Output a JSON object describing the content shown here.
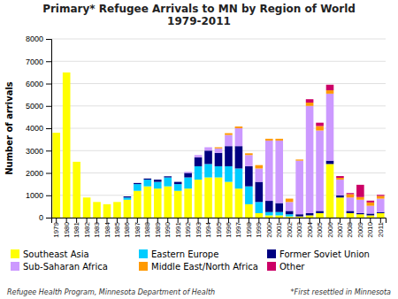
{
  "chart_data": {
    "type": "bar",
    "stacked": true,
    "title": "Primary* Refugee Arrivals to MN by Region of World\n1979-2011",
    "y_label": "Number of arrivals",
    "categories": [
      "1979",
      "1980",
      "1981",
      "1982",
      "1983",
      "1984",
      "1985",
      "1986",
      "1987",
      "1988",
      "1989",
      "1990",
      "1991",
      "1992",
      "1993",
      "1994",
      "1995",
      "1996",
      "1997",
      "1998",
      "1999",
      "2000",
      "2001",
      "2002",
      "2003",
      "2004",
      "2005",
      "2006",
      "2007",
      "2008",
      "2009",
      "2010",
      "2011"
    ],
    "series": [
      {
        "name": "Southeast Asia",
        "color": "#ffff00",
        "values": [
          3800,
          6500,
          2500,
          900,
          700,
          600,
          700,
          800,
          1200,
          1400,
          1300,
          1400,
          1200,
          1300,
          1700,
          1800,
          1800,
          1600,
          1300,
          600,
          200,
          100,
          100,
          50,
          50,
          100,
          200,
          2400,
          900,
          200,
          150,
          100,
          200
        ]
      },
      {
        "name": "Eastern Europe",
        "color": "#00ccff",
        "values": [
          0,
          0,
          0,
          0,
          0,
          0,
          0,
          100,
          300,
          300,
          300,
          400,
          300,
          500,
          600,
          600,
          500,
          700,
          900,
          800,
          500,
          150,
          150,
          100,
          0,
          0,
          0,
          0,
          0,
          0,
          0,
          0,
          0
        ]
      },
      {
        "name": "Former Soviet Union",
        "color": "#000080",
        "values": [
          0,
          0,
          0,
          0,
          0,
          0,
          0,
          50,
          50,
          50,
          100,
          50,
          100,
          200,
          400,
          600,
          600,
          900,
          1000,
          900,
          900,
          500,
          400,
          150,
          100,
          100,
          100,
          150,
          100,
          100,
          50,
          80,
          50
        ]
      },
      {
        "name": "Sub-Saharan Africa",
        "color": "#cc99ff",
        "values": [
          0,
          0,
          0,
          0,
          0,
          0,
          0,
          0,
          0,
          0,
          0,
          0,
          0,
          50,
          100,
          150,
          200,
          500,
          800,
          500,
          600,
          2700,
          2800,
          400,
          2400,
          4800,
          3600,
          3000,
          700,
          600,
          600,
          350,
          600
        ]
      },
      {
        "name": "Middle East/North Africa",
        "color": "#ff9900",
        "values": [
          0,
          0,
          0,
          0,
          0,
          0,
          0,
          0,
          0,
          0,
          0,
          0,
          0,
          0,
          0,
          0,
          50,
          80,
          80,
          80,
          150,
          80,
          80,
          150,
          50,
          150,
          200,
          150,
          80,
          150,
          120,
          150,
          120
        ]
      },
      {
        "name": "Other",
        "color": "#cc0066",
        "values": [
          0,
          0,
          0,
          0,
          0,
          0,
          0,
          0,
          0,
          0,
          0,
          0,
          0,
          0,
          0,
          0,
          0,
          0,
          0,
          0,
          0,
          0,
          0,
          0,
          0,
          150,
          150,
          250,
          80,
          50,
          550,
          80,
          50
        ]
      }
    ],
    "ylim": [
      0,
      8000
    ],
    "yticks": [
      0,
      1000,
      2000,
      3000,
      4000,
      5000,
      6000,
      7000,
      8000
    ],
    "grid": true,
    "legend": "bottom",
    "annotations": [
      "Refugee Health Program, Minnesota Department of Health",
      "*First resettled in Minnesota"
    ]
  }
}
